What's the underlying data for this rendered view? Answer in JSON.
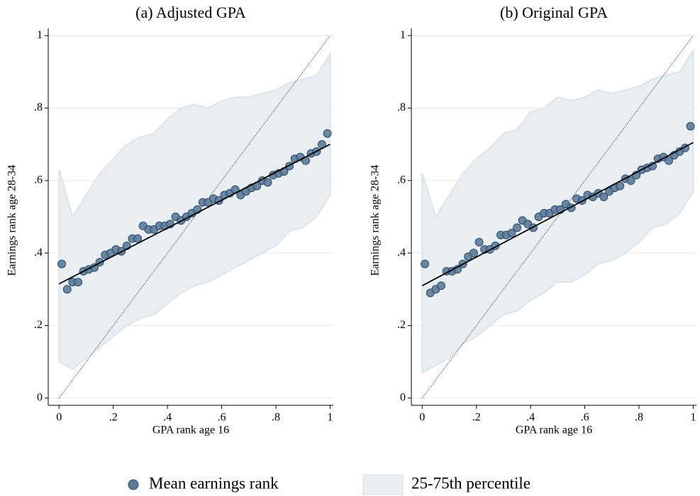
{
  "chart_data": [
    {
      "type": "scatter",
      "title": "(a) Adjusted GPA",
      "x_label": "GPA rank age 16",
      "y_label": "Earnings rank age 28-34",
      "xlim": [
        -0.04,
        1.012
      ],
      "ylim": [
        -0.02,
        1.02
      ],
      "xticks": [
        0,
        {
          "value": 0.2,
          "label": ".2"
        },
        {
          "value": 0.4,
          "label": ".4"
        },
        {
          "value": 0.6,
          "label": ".6"
        },
        {
          "value": 0.8,
          "label": ".8"
        },
        1
      ],
      "yticks": [
        0,
        {
          "value": 0.2,
          "label": ".2"
        },
        {
          "value": 0.4,
          "label": ".4"
        },
        {
          "value": 0.6,
          "label": ".6"
        },
        {
          "value": 0.8,
          "label": ".8"
        },
        1
      ],
      "grid": true,
      "series": [
        {
          "name": "Mean earnings rank",
          "color": "#5b7a99",
          "x": [
            0.01,
            0.03,
            0.05,
            0.07,
            0.09,
            0.11,
            0.13,
            0.15,
            0.17,
            0.19,
            0.21,
            0.23,
            0.25,
            0.27,
            0.29,
            0.31,
            0.33,
            0.35,
            0.37,
            0.39,
            0.41,
            0.43,
            0.45,
            0.47,
            0.49,
            0.51,
            0.53,
            0.55,
            0.57,
            0.59,
            0.61,
            0.63,
            0.65,
            0.67,
            0.69,
            0.71,
            0.73,
            0.75,
            0.77,
            0.79,
            0.81,
            0.83,
            0.85,
            0.87,
            0.89,
            0.91,
            0.93,
            0.95,
            0.97,
            0.99
          ],
          "values": [
            0.37,
            0.3,
            0.32,
            0.32,
            0.35,
            0.355,
            0.36,
            0.375,
            0.395,
            0.4,
            0.41,
            0.405,
            0.42,
            0.44,
            0.44,
            0.475,
            0.465,
            0.465,
            0.475,
            0.475,
            0.48,
            0.5,
            0.49,
            0.5,
            0.51,
            0.52,
            0.54,
            0.54,
            0.55,
            0.545,
            0.56,
            0.565,
            0.575,
            0.56,
            0.57,
            0.58,
            0.585,
            0.6,
            0.595,
            0.615,
            0.62,
            0.625,
            0.64,
            0.66,
            0.665,
            0.655,
            0.675,
            0.68,
            0.7,
            0.73
          ]
        }
      ],
      "band": {
        "name": "25-75th percentile",
        "color": "#e9eef3",
        "x": [
          0,
          0.05,
          0.1,
          0.15,
          0.2,
          0.25,
          0.3,
          0.35,
          0.4,
          0.45,
          0.5,
          0.55,
          0.6,
          0.65,
          0.7,
          0.75,
          0.8,
          0.85,
          0.9,
          0.95,
          1
        ],
        "upper": [
          0.63,
          0.5,
          0.56,
          0.62,
          0.66,
          0.7,
          0.72,
          0.73,
          0.77,
          0.8,
          0.81,
          0.8,
          0.82,
          0.83,
          0.83,
          0.84,
          0.85,
          0.87,
          0.88,
          0.89,
          0.95
        ],
        "lower": [
          0.1,
          0.08,
          0.11,
          0.14,
          0.17,
          0.2,
          0.22,
          0.23,
          0.26,
          0.29,
          0.31,
          0.32,
          0.34,
          0.36,
          0.38,
          0.4,
          0.42,
          0.46,
          0.47,
          0.5,
          0.56
        ]
      },
      "fit": {
        "color": "#000000",
        "x": [
          0,
          1
        ],
        "values": [
          0.315,
          0.7
        ]
      },
      "diagonal": {
        "color": "#000000",
        "x": [
          0,
          1
        ],
        "values": [
          0,
          1
        ]
      }
    },
    {
      "type": "scatter",
      "title": "(b) Original GPA",
      "x_label": "GPA rank age 16",
      "y_label": "Earnings rank age 28-34",
      "xlim": [
        -0.04,
        1.012
      ],
      "ylim": [
        -0.02,
        1.02
      ],
      "xticks": [
        0,
        {
          "value": 0.2,
          "label": ".2"
        },
        {
          "value": 0.4,
          "label": ".4"
        },
        {
          "value": 0.6,
          "label": ".6"
        },
        {
          "value": 0.8,
          "label": ".8"
        },
        1
      ],
      "yticks": [
        0,
        {
          "value": 0.2,
          "label": ".2"
        },
        {
          "value": 0.4,
          "label": ".4"
        },
        {
          "value": 0.6,
          "label": ".6"
        },
        {
          "value": 0.8,
          "label": ".8"
        },
        1
      ],
      "grid": true,
      "series": [
        {
          "color": "#5b7a99",
          "x": [
            0.01,
            0.03,
            0.05,
            0.07,
            0.09,
            0.11,
            0.13,
            0.15,
            0.17,
            0.19,
            0.21,
            0.23,
            0.25,
            0.27,
            0.29,
            0.31,
            0.33,
            0.35,
            0.37,
            0.39,
            0.41,
            0.43,
            0.45,
            0.47,
            0.49,
            0.51,
            0.53,
            0.55,
            0.57,
            0.59,
            0.61,
            0.63,
            0.65,
            0.67,
            0.69,
            0.71,
            0.73,
            0.75,
            0.77,
            0.79,
            0.81,
            0.83,
            0.85,
            0.87,
            0.89,
            0.91,
            0.93,
            0.95,
            0.97,
            0.99
          ],
          "values": [
            0.37,
            0.29,
            0.3,
            0.31,
            0.35,
            0.35,
            0.355,
            0.37,
            0.39,
            0.4,
            0.43,
            0.41,
            0.41,
            0.42,
            0.45,
            0.45,
            0.455,
            0.47,
            0.49,
            0.48,
            0.47,
            0.5,
            0.51,
            0.51,
            0.52,
            0.52,
            0.535,
            0.525,
            0.55,
            0.545,
            0.56,
            0.555,
            0.565,
            0.555,
            0.57,
            0.58,
            0.585,
            0.605,
            0.6,
            0.615,
            0.63,
            0.635,
            0.64,
            0.66,
            0.665,
            0.655,
            0.67,
            0.68,
            0.69,
            0.75
          ]
        }
      ],
      "band": {
        "color": "#e9eef3",
        "x": [
          0,
          0.05,
          0.1,
          0.15,
          0.2,
          0.25,
          0.3,
          0.35,
          0.4,
          0.45,
          0.5,
          0.55,
          0.6,
          0.65,
          0.7,
          0.75,
          0.8,
          0.85,
          0.9,
          0.95,
          1
        ],
        "upper": [
          0.62,
          0.5,
          0.56,
          0.62,
          0.66,
          0.69,
          0.73,
          0.74,
          0.79,
          0.8,
          0.83,
          0.82,
          0.83,
          0.85,
          0.84,
          0.85,
          0.86,
          0.88,
          0.89,
          0.9,
          0.96
        ],
        "lower": [
          0.07,
          0.09,
          0.11,
          0.15,
          0.17,
          0.2,
          0.23,
          0.24,
          0.27,
          0.29,
          0.32,
          0.32,
          0.34,
          0.37,
          0.38,
          0.4,
          0.43,
          0.47,
          0.48,
          0.51,
          0.57
        ]
      },
      "fit": {
        "color": "#000000",
        "x": [
          0,
          1
        ],
        "values": [
          0.31,
          0.705
        ]
      },
      "diagonal": {
        "color": "#000000",
        "x": [
          0,
          1
        ],
        "values": [
          0,
          1
        ]
      }
    }
  ]
}
